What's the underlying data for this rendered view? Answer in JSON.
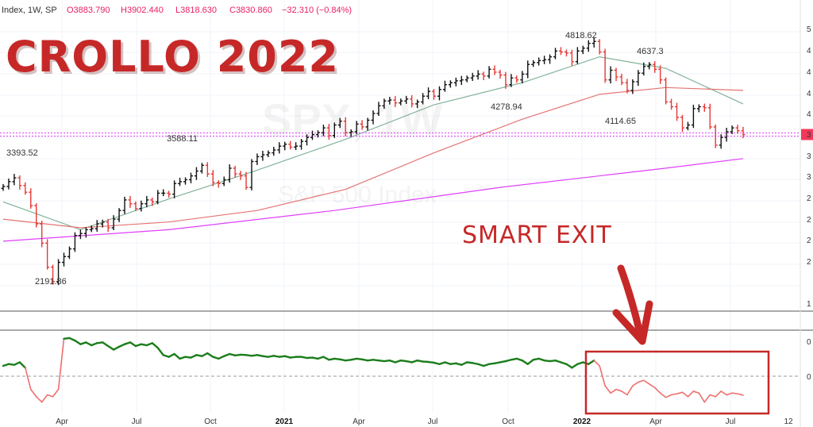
{
  "header": {
    "symbol_label": "Index, 1W, SP",
    "open": "O3883.790",
    "high": "H3902.440",
    "low": "L3818.630",
    "close": "C3830.860",
    "change": "−32.310 (−0.84%)"
  },
  "overlay": {
    "title": "CROLLO 2022",
    "callout": "SMART EXIT",
    "watermark_symbol": "SPX, 1W",
    "watermark_name": "S&P 500 Index"
  },
  "right_axis_digits": [
    "5",
    "4",
    "4",
    "4",
    "4",
    "3",
    "3",
    "3",
    "2",
    "2",
    "2",
    "2",
    "1",
    "0",
    "0"
  ],
  "colors": {
    "bar_up": "#111111",
    "bar_down": "#e53935",
    "ma_short": "#81b29a",
    "ma_mid": "#e57373",
    "ma_long": "#e040fb",
    "indicator_positive": "#1b7d1b",
    "indicator_negative": "#ef6f6f",
    "highlight": "#c62828"
  },
  "chart_data": [
    {
      "type": "ohlc",
      "series_note": "weekly bars",
      "annotations": [
        {
          "label": "3393.52",
          "value": 3393.52,
          "date": "2020-02"
        },
        {
          "label": "2191.86",
          "value": 2191.86,
          "date": "2020-03"
        },
        {
          "label": "3588.11",
          "value": 3588.11,
          "date": "2020-09"
        },
        {
          "label": "4278.94",
          "value": 4278.94,
          "date": "2021-09"
        },
        {
          "label": "4818.62",
          "value": 4818.62,
          "date": "2022-01"
        },
        {
          "label": "4114.65",
          "value": 4114.65,
          "date": "2022-02"
        },
        {
          "label": "4637.3",
          "value": 4637.3,
          "date": "2022-03"
        }
      ],
      "x_ticks": [
        "Apr",
        "Jul",
        "Oct",
        "2021",
        "Apr",
        "Jul",
        "Oct",
        "2022",
        "Apr",
        "Jul",
        "12"
      ],
      "bold_ticks": [
        "2021",
        "2022"
      ],
      "last_close": 3830.86,
      "ylim": [
        2050,
        5000
      ],
      "closes": [
        3290,
        3340,
        3380,
        3300,
        3230,
        3090,
        2900,
        2700,
        2450,
        2300,
        2500,
        2560,
        2640,
        2780,
        2800,
        2840,
        2850,
        2900,
        2920,
        2860,
        2950,
        3040,
        3150,
        3110,
        3060,
        3110,
        3150,
        3130,
        3220,
        3220,
        3210,
        3320,
        3340,
        3360,
        3400,
        3450,
        3510,
        3420,
        3330,
        3320,
        3360,
        3480,
        3420,
        3400,
        3280,
        3550,
        3600,
        3620,
        3640,
        3670,
        3710,
        3730,
        3700,
        3710,
        3760,
        3800,
        3830,
        3850,
        3900,
        3820,
        3930,
        3970,
        3850,
        3860,
        3940,
        3910,
        3980,
        4050,
        4130,
        4180,
        4190,
        4160,
        4180,
        4200,
        4150,
        4170,
        4230,
        4280,
        4230,
        4300,
        4350,
        4370,
        4390,
        4400,
        4420,
        4440,
        4460,
        4440,
        4510,
        4480,
        4450,
        4350,
        4420,
        4400,
        4460,
        4560,
        4580,
        4600,
        4610,
        4640,
        4700,
        4690,
        4680,
        4590,
        4700,
        4730,
        4780,
        4800,
        4690,
        4400,
        4500,
        4430,
        4370,
        4290,
        4380,
        4470,
        4540,
        4560,
        4510,
        4400,
        4170,
        4120,
        4010,
        3900,
        3930,
        4100,
        4120,
        4110,
        3910,
        3720,
        3800,
        3860,
        3900,
        3870,
        3830
      ],
      "moving_averages": [
        {
          "period": "short",
          "points": [
            [
              0,
              3130
            ],
            [
              14,
              2840
            ],
            [
              30,
              3160
            ],
            [
              46,
              3460
            ],
            [
              62,
              3780
            ],
            [
              78,
              4140
            ],
            [
              94,
              4370
            ],
            [
              108,
              4640
            ],
            [
              120,
              4520
            ],
            [
              134,
              4150
            ]
          ]
        },
        {
          "period": "mid",
          "points": [
            [
              0,
              2950
            ],
            [
              14,
              2860
            ],
            [
              30,
              2920
            ],
            [
              46,
              3040
            ],
            [
              62,
              3260
            ],
            [
              78,
              3640
            ],
            [
              94,
              3990
            ],
            [
              108,
              4250
            ],
            [
              120,
              4320
            ],
            [
              134,
              4290
            ]
          ]
        },
        {
          "period": "long",
          "points": [
            [
              0,
              2720
            ],
            [
              30,
              2840
            ],
            [
              60,
              3040
            ],
            [
              90,
              3280
            ],
            [
              120,
              3480
            ],
            [
              134,
              3580
            ]
          ]
        }
      ]
    },
    {
      "type": "line",
      "title": "",
      "baseline": 0,
      "ylim": [
        -1,
        1.15
      ],
      "highlight_from_index": 104,
      "x": "week index",
      "values": [
        0.25,
        0.3,
        0.28,
        0.35,
        0.2,
        -0.4,
        -0.6,
        -0.75,
        -0.55,
        -0.6,
        -0.4,
        1.0,
        1.02,
        0.95,
        0.85,
        0.9,
        0.82,
        0.88,
        0.9,
        0.8,
        0.7,
        0.78,
        0.85,
        0.9,
        0.8,
        0.85,
        0.82,
        0.88,
        0.75,
        0.55,
        0.5,
        0.58,
        0.45,
        0.5,
        0.48,
        0.55,
        0.52,
        0.6,
        0.5,
        0.45,
        0.52,
        0.58,
        0.54,
        0.56,
        0.55,
        0.53,
        0.55,
        0.52,
        0.5,
        0.53,
        0.5,
        0.52,
        0.48,
        0.5,
        0.5,
        0.47,
        0.48,
        0.45,
        0.5,
        0.42,
        0.45,
        0.43,
        0.4,
        0.42,
        0.45,
        0.43,
        0.4,
        0.42,
        0.4,
        0.38,
        0.4,
        0.35,
        0.4,
        0.38,
        0.35,
        0.4,
        0.37,
        0.36,
        0.34,
        0.3,
        0.35,
        0.3,
        0.32,
        0.28,
        0.35,
        0.33,
        0.3,
        0.25,
        0.3,
        0.32,
        0.35,
        0.38,
        0.42,
        0.45,
        0.4,
        0.3,
        0.42,
        0.45,
        0.4,
        0.38,
        0.4,
        0.35,
        0.3,
        0.2,
        0.3,
        0.35,
        0.3,
        0.4,
        0.25,
        -0.3,
        -0.5,
        -0.4,
        -0.45,
        -0.55,
        -0.3,
        -0.2,
        -0.15,
        -0.25,
        -0.35,
        -0.5,
        -0.62,
        -0.55,
        -0.52,
        -0.48,
        -0.6,
        -0.45,
        -0.5,
        -0.75,
        -0.55,
        -0.6,
        -0.45,
        -0.55,
        -0.5,
        -0.52,
        -0.56
      ]
    }
  ]
}
